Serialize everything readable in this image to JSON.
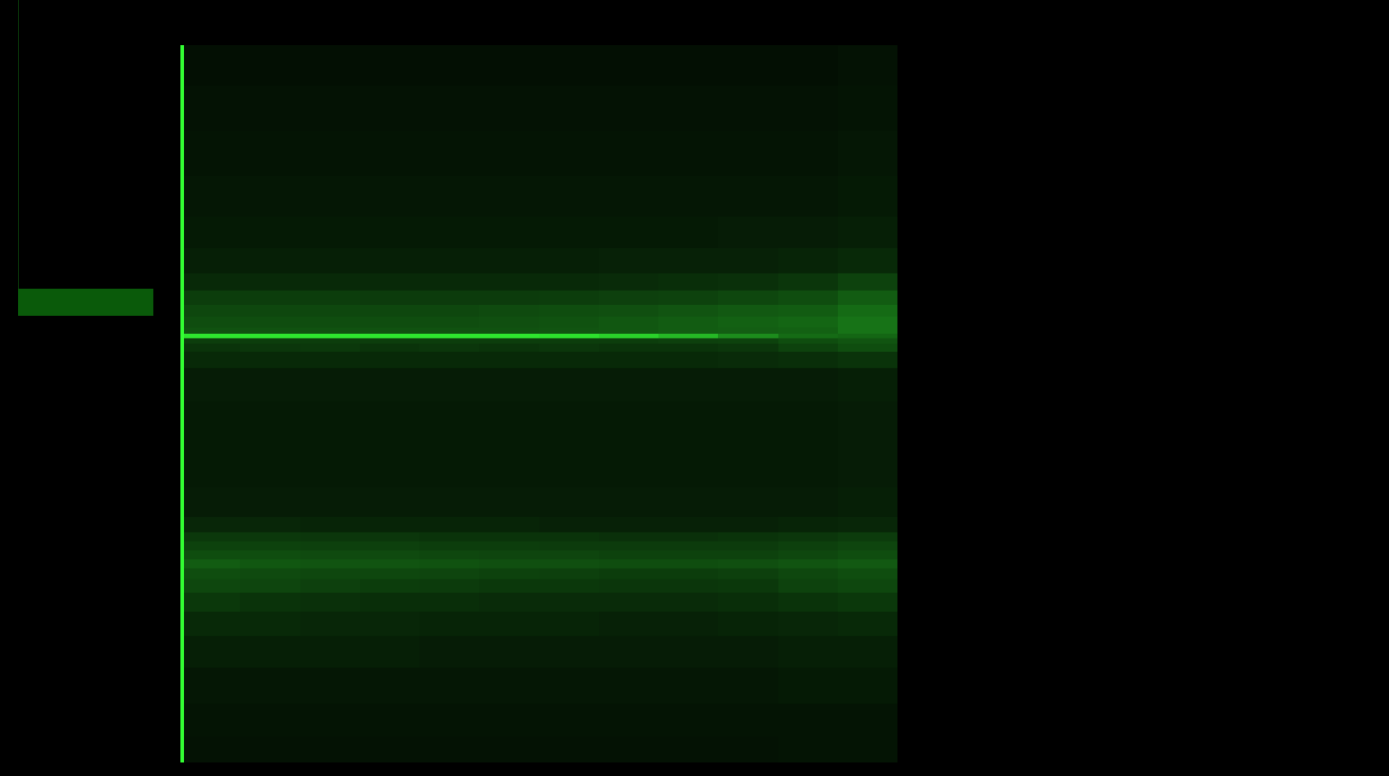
{
  "chart_data": {
    "type": "heatmap",
    "tick_labels": false,
    "color": "#33ff33",
    "x": [
      0,
      1,
      2,
      3,
      4,
      5,
      6,
      7,
      8,
      9,
      10,
      11
    ],
    "xlim": [
      -0.5,
      11.5
    ],
    "y": [
      1.3,
      5.7,
      10.7,
      15.7,
      19.5,
      22.6,
      24.8,
      26.4,
      27.7,
      28.9,
      30.2,
      31.4,
      32.7,
      35.8,
      40.9,
      47.2,
      53.5,
      56.6,
      57.9,
      58.9,
      59.5,
      60.1,
      61.3,
      62.9,
      64.8,
      66.7,
      69.8,
      73.6,
      78.6,
      84.9,
      91.2,
      97.5
    ],
    "ylim": [
      0,
      100
    ],
    "zlim": [
      0,
      100
    ],
    "cells": [
      [
        7,
        7,
        7,
        7,
        7,
        7,
        7,
        7,
        7,
        7,
        8,
        8
      ],
      [
        8,
        8,
        8,
        8,
        8,
        8,
        8,
        8,
        8,
        8,
        8,
        8
      ],
      [
        9,
        9,
        9,
        9,
        9,
        9,
        9,
        9,
        9,
        9,
        10,
        10
      ],
      [
        12,
        12,
        12,
        12,
        11,
        11,
        11,
        11,
        11,
        11,
        12,
        12
      ],
      [
        16,
        16,
        15,
        15,
        14,
        14,
        14,
        13,
        13,
        14,
        15,
        16
      ],
      [
        22,
        20,
        19,
        18,
        18,
        17,
        17,
        17,
        17,
        18,
        20,
        22
      ],
      [
        28,
        27,
        25,
        24,
        23,
        22,
        22,
        21,
        21,
        22,
        26,
        28
      ],
      [
        30,
        29,
        28,
        28,
        27,
        26,
        25,
        24,
        24,
        25,
        28,
        30
      ],
      [
        36,
        34,
        33,
        33,
        32,
        31,
        31,
        30,
        30,
        31,
        33,
        35
      ],
      [
        30,
        30,
        29,
        29,
        28,
        27,
        27,
        26,
        26,
        26,
        28,
        30
      ],
      [
        26,
        26,
        25,
        25,
        24,
        24,
        23,
        23,
        23,
        23,
        25,
        27
      ],
      [
        22,
        22,
        21,
        21,
        20,
        20,
        20,
        19,
        19,
        20,
        21,
        23
      ],
      [
        15,
        15,
        14,
        14,
        14,
        14,
        13,
        13,
        13,
        13,
        14,
        15
      ],
      [
        11,
        11,
        11,
        11,
        11,
        11,
        11,
        11,
        11,
        11,
        11,
        12
      ],
      [
        10,
        10,
        10,
        10,
        10,
        10,
        10,
        10,
        10,
        10,
        10,
        11
      ],
      [
        10,
        10,
        10,
        10,
        10,
        10,
        10,
        10,
        10,
        10,
        10,
        11
      ],
      [
        11,
        11,
        11,
        11,
        11,
        11,
        11,
        11,
        11,
        11,
        11,
        12
      ],
      [
        16,
        16,
        16,
        16,
        16,
        16,
        16,
        16,
        16,
        17,
        18,
        20
      ],
      [
        20,
        21,
        22,
        20,
        21,
        20,
        21,
        20,
        20,
        21,
        26,
        30
      ],
      [
        24,
        24,
        24,
        24,
        24,
        24,
        24,
        24,
        25,
        26,
        30,
        33
      ],
      [
        90,
        90,
        90,
        90,
        90,
        90,
        88,
        82,
        72,
        55,
        42,
        40
      ],
      [
        32,
        32,
        32,
        32,
        32,
        32,
        33,
        34,
        36,
        37,
        38,
        45
      ],
      [
        30,
        30,
        30,
        30,
        30,
        31,
        32,
        34,
        36,
        38,
        40,
        45
      ],
      [
        28,
        28,
        28,
        28,
        28,
        29,
        30,
        31,
        33,
        35,
        36,
        42
      ],
      [
        24,
        24,
        24,
        23,
        23,
        23,
        24,
        25,
        26,
        28,
        30,
        36
      ],
      [
        16,
        16,
        16,
        16,
        16,
        16,
        16,
        17,
        18,
        19,
        21,
        26
      ],
      [
        12,
        12,
        12,
        12,
        12,
        12,
        12,
        13,
        13,
        13,
        14,
        16
      ],
      [
        10,
        10,
        10,
        10,
        10,
        10,
        10,
        10,
        10,
        11,
        11,
        12
      ],
      [
        9,
        9,
        9,
        9,
        9,
        9,
        9,
        9,
        9,
        9,
        9,
        10
      ],
      [
        8,
        8,
        8,
        8,
        8,
        8,
        8,
        8,
        8,
        8,
        8,
        9
      ],
      [
        7,
        7,
        7,
        7,
        7,
        7,
        7,
        7,
        7,
        7,
        7,
        8
      ],
      [
        6,
        6,
        6,
        6,
        6,
        6,
        6,
        6,
        6,
        6,
        6,
        7
      ]
    ]
  }
}
